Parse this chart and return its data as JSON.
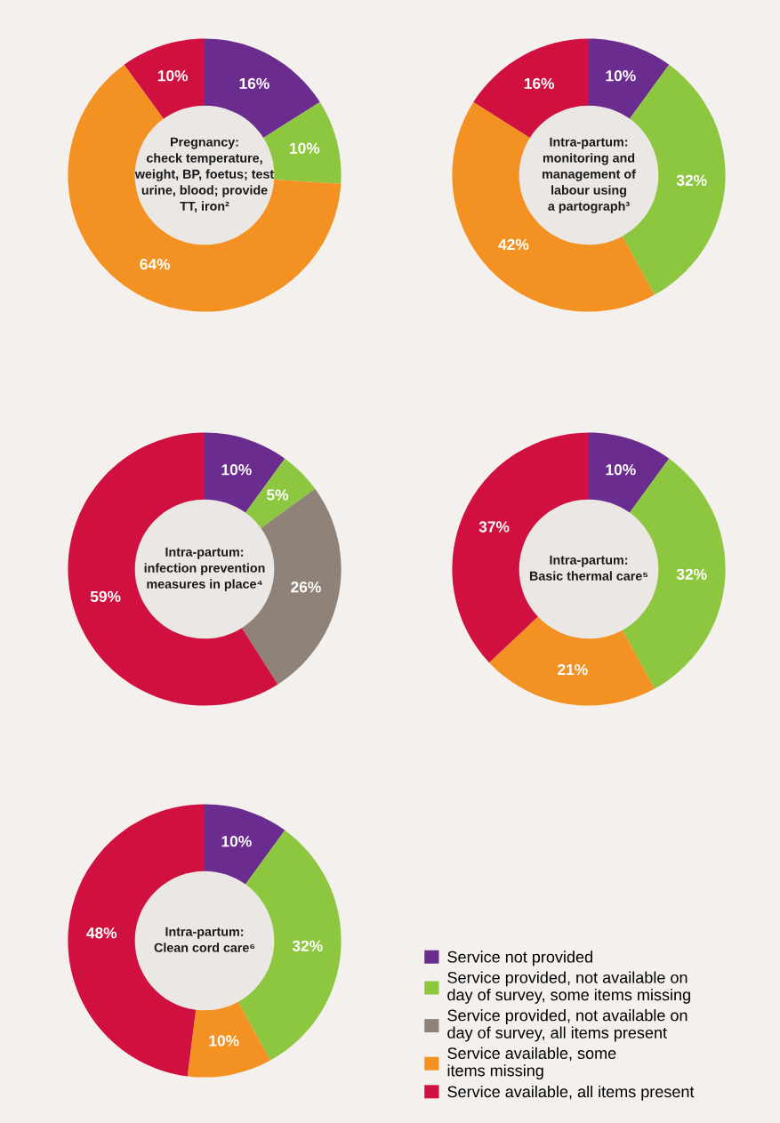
{
  "chart_data": [
    {
      "type": "donut",
      "title": "Pregnancy:\ncheck temperature,\nweight, BP, foetus; test\nurine, blood; provide\nTT, iron²",
      "values": [
        16,
        10,
        0,
        64,
        10
      ],
      "value_labels": [
        "16%",
        "10%",
        null,
        "64%",
        "10%"
      ],
      "colors": [
        "#6a2c8e",
        "#8dc63f",
        "#8f8379",
        "#f39222",
        "#d0103f"
      ]
    },
    {
      "type": "donut",
      "title": "Intra-partum:\nmonitoring and\nmanagement of\nlabour using\na partograph³",
      "values": [
        10,
        32,
        0,
        42,
        16
      ],
      "value_labels": [
        "10%",
        "32%",
        null,
        "42%",
        "16%"
      ],
      "colors": [
        "#6a2c8e",
        "#8dc63f",
        "#8f8379",
        "#f39222",
        "#d0103f"
      ]
    },
    {
      "type": "donut",
      "title": "Intra-partum:\ninfection prevention\nmeasures in place⁴",
      "values": [
        10,
        5,
        26,
        0,
        59
      ],
      "value_labels": [
        "10%",
        "5%",
        "26%",
        null,
        "59%"
      ],
      "colors": [
        "#6a2c8e",
        "#8dc63f",
        "#8f8379",
        "#f39222",
        "#d0103f"
      ]
    },
    {
      "type": "donut",
      "title": "Intra-partum:\nBasic thermal care⁵",
      "values": [
        10,
        32,
        0,
        21,
        37
      ],
      "value_labels": [
        "10%",
        "32%",
        null,
        "21%",
        "37%"
      ],
      "colors": [
        "#6a2c8e",
        "#8dc63f",
        "#8f8379",
        "#f39222",
        "#d0103f"
      ]
    },
    {
      "type": "donut",
      "title": "Intra-partum:\nClean cord care⁶",
      "categories": [
        "Service not provided",
        "Service provided, not available on\nday of survey, some items missing",
        "Service provided, not available on\nday of survey, all items present",
        "Service available, some\nitems missing",
        "Service available, all items present"
      ],
      "values": [
        10,
        32,
        0,
        10,
        48
      ],
      "value_labels": [
        "10%",
        "32%",
        null,
        "10%",
        "48%"
      ],
      "colors": [
        "#6a2c8e",
        "#8dc63f",
        "#8f8379",
        "#f39222",
        "#d0103f"
      ],
      "legend": "right"
    }
  ]
}
